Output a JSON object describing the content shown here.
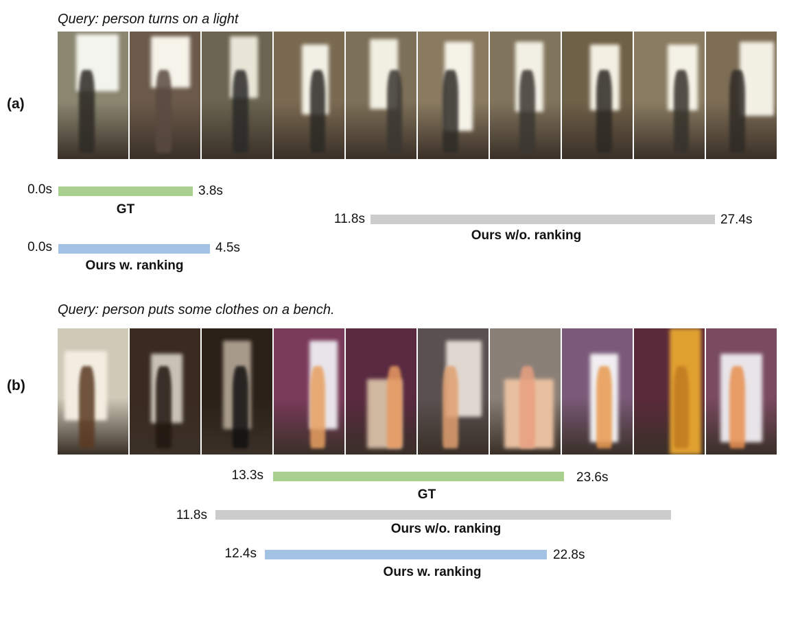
{
  "colors": {
    "gt": "#a9d08e",
    "ours_wo_ranking": "#cccccc",
    "ours_w_ranking": "#a4c2e4"
  },
  "panel_a": {
    "label": "(a)",
    "query": "Query: person turns on a light",
    "frames": [
      "video-frame",
      "video-frame",
      "video-frame",
      "video-frame",
      "video-frame",
      "video-frame",
      "video-frame",
      "video-frame",
      "video-frame",
      "video-frame"
    ],
    "gt": {
      "start": "0.0s",
      "end": "3.8s",
      "label": "GT"
    },
    "ours_wo_ranking": {
      "start": "11.8s",
      "end": "27.4s",
      "label": "Ours w/o. ranking"
    },
    "ours_w_ranking": {
      "start": "0.0s",
      "end": "4.5s",
      "label": "Ours w. ranking"
    }
  },
  "panel_b": {
    "label": "(b)",
    "query": "Query: person puts some clothes on a bench.",
    "frames": [
      "video-frame",
      "video-frame",
      "video-frame",
      "video-frame",
      "video-frame",
      "video-frame",
      "video-frame",
      "video-frame",
      "video-frame",
      "video-frame"
    ],
    "gt": {
      "start": "13.3s",
      "end": "23.6s",
      "label": "GT"
    },
    "ours_wo_ranking": {
      "start": "11.8s",
      "end": "",
      "label": "Ours w/o. ranking"
    },
    "ours_w_ranking": {
      "start": "12.4s",
      "end": "22.8s",
      "label": "Ours w. ranking"
    }
  }
}
